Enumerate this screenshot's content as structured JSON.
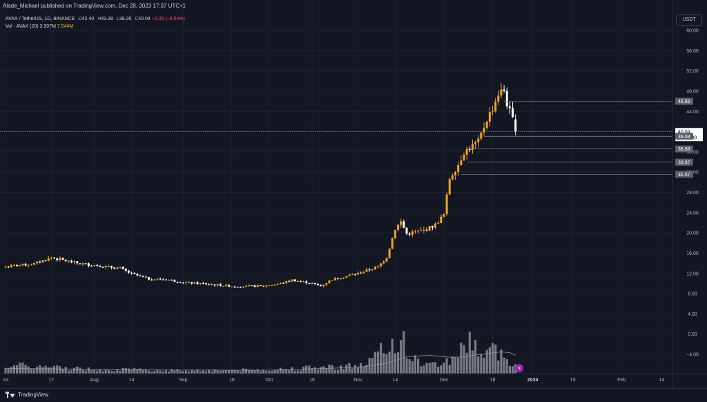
{
  "header": {
    "published_line": "Alade_Michael published on TradingView.com, Dec 28, 2023 17:37 UTC+1",
    "symbol": "AVAX / TetherUS, 1D, BINANCE",
    "ohlc": {
      "open_label": "O",
      "open": "42.40",
      "high_label": "H",
      "high": "43.39",
      "low_label": "L",
      "low": "39.26",
      "close_label": "C",
      "close": "40.04",
      "change": "−2.35 (−5.54%)"
    },
    "volume": {
      "label": "Vol · AVAX (20)",
      "value": "3.907M",
      "ma_value": "7.544M"
    },
    "currency": "USDT"
  },
  "footer": {
    "brand": "TradingView"
  },
  "colors": {
    "background": "#131722",
    "bullish": "#f0a12a",
    "bearish": "#ffffff",
    "volume_bar": "#8a8d94",
    "volume_ma": "#9598a1",
    "price_line": "#9598a1",
    "badge": "#5d606b",
    "alert_icon": "#9c27b0"
  },
  "chart_data": {
    "type": "candlestick",
    "title": "AVAX / TetherUS, 1D, BINANCE",
    "y_ticks": [
      "60.00",
      "56.00",
      "52.00",
      "48.00",
      "44.00",
      "40.00",
      "36.00",
      "32.00",
      "28.00",
      "24.00",
      "20.00",
      "16.00",
      "12.00",
      "8.00",
      "4.00",
      "0.00",
      "−4.00"
    ],
    "ylim": [
      -6,
      62
    ],
    "x_ticks": [
      "Jul",
      "17",
      "Aug",
      "14",
      "Sep",
      "18",
      "Oct",
      "16",
      "Nov",
      "14",
      "Dec",
      "18",
      "2024",
      "15",
      "Feb",
      "14"
    ],
    "x_tick_days": [
      0,
      16,
      31,
      44,
      62,
      79,
      92,
      107,
      123,
      136,
      153,
      170,
      184,
      198,
      215,
      229
    ],
    "start_date": "2023-07-01",
    "last_price": {
      "value": "40.04",
      "countdown": "07:22:08"
    },
    "level_badges": [
      {
        "price": 45.99,
        "label": "45.99",
        "from_day": 174
      },
      {
        "price": 39.08,
        "label": "39.08",
        "from_day": 167
      },
      {
        "price": 36.58,
        "label": "36.58",
        "from_day": 161
      },
      {
        "price": 33.97,
        "label": "33.97",
        "from_day": 161
      },
      {
        "price": 31.57,
        "label": "31.57",
        "from_day": 159
      }
    ],
    "close_anchors": [
      [
        0,
        13.3
      ],
      [
        10,
        13.9
      ],
      [
        16,
        15.1
      ],
      [
        25,
        14.0
      ],
      [
        31,
        13.6
      ],
      [
        40,
        13.0
      ],
      [
        44,
        11.9
      ],
      [
        50,
        10.9
      ],
      [
        56,
        10.8
      ],
      [
        62,
        10.2
      ],
      [
        70,
        9.9
      ],
      [
        80,
        9.4
      ],
      [
        90,
        9.5
      ],
      [
        96,
        10.0
      ],
      [
        100,
        10.7
      ],
      [
        107,
        10.0
      ],
      [
        110,
        9.5
      ],
      [
        114,
        10.8
      ],
      [
        123,
        12.0
      ],
      [
        130,
        13.3
      ],
      [
        133,
        15.2
      ],
      [
        136,
        20.8
      ],
      [
        138,
        22.2
      ],
      [
        140,
        19.8
      ],
      [
        146,
        20.5
      ],
      [
        150,
        21.6
      ],
      [
        153,
        23.6
      ],
      [
        155,
        30.8
      ],
      [
        158,
        33.5
      ],
      [
        160,
        36.0
      ],
      [
        165,
        38.0
      ],
      [
        168,
        42.5
      ],
      [
        170,
        44.6
      ],
      [
        172,
        47.5
      ],
      [
        174,
        48.2
      ],
      [
        175,
        45.5
      ],
      [
        177,
        42.4
      ],
      [
        178,
        40.04
      ]
    ],
    "volume_anchors": [
      [
        0,
        3.6
      ],
      [
        30,
        1.9
      ],
      [
        60,
        1.4
      ],
      [
        90,
        1.6
      ],
      [
        105,
        2.4
      ],
      [
        115,
        3.0
      ],
      [
        125,
        3.6
      ],
      [
        133,
        10.5
      ],
      [
        138,
        15.2
      ],
      [
        142,
        6.0
      ],
      [
        148,
        3.5
      ],
      [
        155,
        5.5
      ],
      [
        160,
        11.0
      ],
      [
        163,
        15.0
      ],
      [
        166,
        7.5
      ],
      [
        170,
        10.0
      ],
      [
        174,
        7.0
      ],
      [
        178,
        3.9
      ]
    ],
    "volume_ma_anchors": [
      [
        0,
        2.2
      ],
      [
        30,
        1.8
      ],
      [
        60,
        1.5
      ],
      [
        90,
        1.4
      ],
      [
        115,
        2.3
      ],
      [
        125,
        2.9
      ],
      [
        133,
        4.3
      ],
      [
        140,
        7.0
      ],
      [
        148,
        7.6
      ],
      [
        155,
        6.8
      ],
      [
        160,
        6.9
      ],
      [
        166,
        8.1
      ],
      [
        173,
        9.0
      ],
      [
        176,
        8.7
      ],
      [
        178,
        7.54
      ]
    ],
    "volume_ylim": [
      0,
      40
    ]
  }
}
